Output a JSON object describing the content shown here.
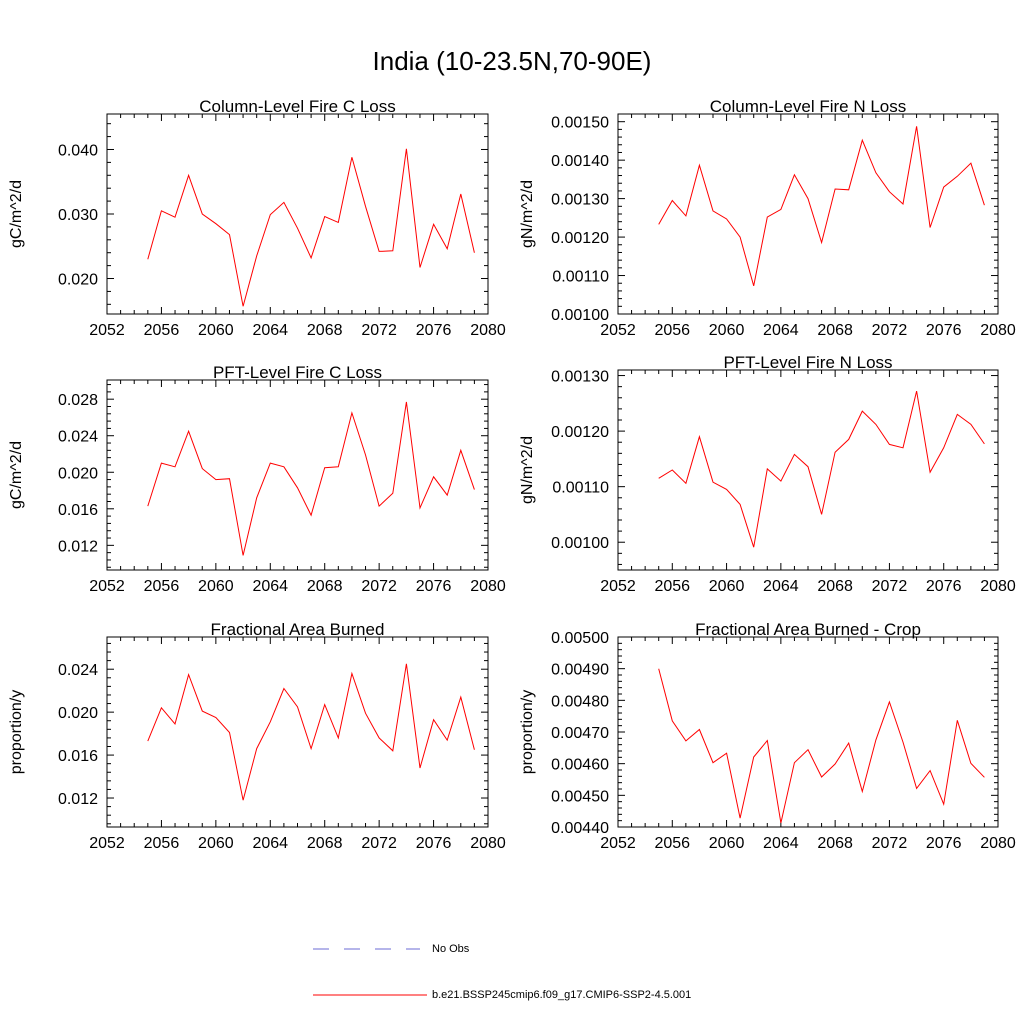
{
  "figure": {
    "title": "India (10-23.5N,70-90E)"
  },
  "legend": {
    "items": [
      {
        "label": "No Obs",
        "color": "#6b6bd6",
        "style": "dashed"
      },
      {
        "label": "b.e21.BSSP245cmip6.f09_g17.CMIP6-SSP2-4.5.001",
        "color": "#ff0000",
        "style": "solid"
      }
    ]
  },
  "colors": {
    "series": "#ff0000",
    "axis": "#000000"
  },
  "chart_data": [
    {
      "type": "line",
      "title": "Column-Level Fire C Loss",
      "ylabel": "gC/m^2/d",
      "xlim": [
        2052,
        2080
      ],
      "ylim": [
        0.0145,
        0.0455
      ],
      "xticks": [
        2052,
        2056,
        2060,
        2064,
        2068,
        2072,
        2076,
        2080
      ],
      "yticks": [
        0.02,
        0.03,
        0.04
      ],
      "ytick_labels": [
        "0.020",
        "0.030",
        "0.040"
      ],
      "x": [
        2055,
        2056,
        2057,
        2058,
        2059,
        2060,
        2061,
        2062,
        2063,
        2064,
        2065,
        2066,
        2067,
        2068,
        2069,
        2070,
        2071,
        2072,
        2073,
        2074,
        2075,
        2076,
        2077,
        2078,
        2079
      ],
      "series": [
        {
          "values": [
            0.023,
            0.0305,
            0.0295,
            0.036,
            0.03,
            0.0285,
            0.0268,
            0.0157,
            0.0235,
            0.0299,
            0.0318,
            0.0278,
            0.0232,
            0.0296,
            0.0287,
            0.0388,
            0.0312,
            0.0242,
            0.0243,
            0.0401,
            0.0217,
            0.0284,
            0.0246,
            0.0331,
            0.024
          ]
        }
      ]
    },
    {
      "type": "line",
      "title": "Column-Level Fire N Loss",
      "ylabel": "gN/m^2/d",
      "xlim": [
        2052,
        2080
      ],
      "ylim": [
        0.001,
        0.00152
      ],
      "xticks": [
        2052,
        2056,
        2060,
        2064,
        2068,
        2072,
        2076,
        2080
      ],
      "yticks": [
        0.001,
        0.0011,
        0.0012,
        0.0013,
        0.0014,
        0.0015
      ],
      "ytick_labels": [
        "0.00100",
        "0.00110",
        "0.00120",
        "0.00130",
        "0.00140",
        "0.00150"
      ],
      "x": [
        2055,
        2056,
        2057,
        2058,
        2059,
        2060,
        2061,
        2062,
        2063,
        2064,
        2065,
        2066,
        2067,
        2068,
        2069,
        2070,
        2071,
        2072,
        2073,
        2074,
        2075,
        2076,
        2077,
        2078,
        2079
      ],
      "series": [
        {
          "values": [
            0.001233,
            0.001295,
            0.001255,
            0.001387,
            0.001268,
            0.001247,
            0.0012,
            0.001073,
            0.001252,
            0.001272,
            0.001362,
            0.0013,
            0.001186,
            0.001325,
            0.001323,
            0.001452,
            0.001367,
            0.001318,
            0.001286,
            0.001488,
            0.001225,
            0.00133,
            0.001358,
            0.001392,
            0.001283
          ]
        }
      ]
    },
    {
      "type": "line",
      "title": "PFT-Level Fire C Loss",
      "ylabel": "gC/m^2/d",
      "xlim": [
        2052,
        2080
      ],
      "ylim": [
        0.0093,
        0.0301
      ],
      "xticks": [
        2052,
        2056,
        2060,
        2064,
        2068,
        2072,
        2076,
        2080
      ],
      "yticks": [
        0.012,
        0.016,
        0.02,
        0.024,
        0.028
      ],
      "ytick_labels": [
        "0.012",
        "0.016",
        "0.020",
        "0.024",
        "0.028"
      ],
      "x": [
        2055,
        2056,
        2057,
        2058,
        2059,
        2060,
        2061,
        2062,
        2063,
        2064,
        2065,
        2066,
        2067,
        2068,
        2069,
        2070,
        2071,
        2072,
        2073,
        2074,
        2075,
        2076,
        2077,
        2078,
        2079
      ],
      "series": [
        {
          "values": [
            0.0163,
            0.021,
            0.0206,
            0.0245,
            0.0204,
            0.0192,
            0.0193,
            0.0109,
            0.0172,
            0.021,
            0.0206,
            0.0183,
            0.0153,
            0.0205,
            0.0206,
            0.0265,
            0.0219,
            0.0163,
            0.0177,
            0.0277,
            0.0161,
            0.0195,
            0.0175,
            0.0224,
            0.0181
          ]
        }
      ]
    },
    {
      "type": "line",
      "title": "PFT-Level Fire N Loss",
      "ylabel": "gN/m^2/d",
      "xlim": [
        2052,
        2080
      ],
      "ylim": [
        0.00095,
        0.00131
      ],
      "xticks": [
        2052,
        2056,
        2060,
        2064,
        2068,
        2072,
        2076,
        2080
      ],
      "yticks": [
        0.001,
        0.0011,
        0.0012,
        0.0013
      ],
      "ytick_labels": [
        "0.00100",
        "0.00110",
        "0.00120",
        "0.00130"
      ],
      "x": [
        2055,
        2056,
        2057,
        2058,
        2059,
        2060,
        2061,
        2062,
        2063,
        2064,
        2065,
        2066,
        2067,
        2068,
        2069,
        2070,
        2071,
        2072,
        2073,
        2074,
        2075,
        2076,
        2077,
        2078,
        2079
      ],
      "series": [
        {
          "values": [
            0.001115,
            0.00113,
            0.001106,
            0.00119,
            0.001108,
            0.001095,
            0.001068,
            0.000991,
            0.001132,
            0.00111,
            0.001158,
            0.001136,
            0.00105,
            0.001162,
            0.001185,
            0.001236,
            0.001212,
            0.001176,
            0.00117,
            0.001272,
            0.001126,
            0.00117,
            0.00123,
            0.001212,
            0.001177
          ]
        }
      ]
    },
    {
      "type": "line",
      "title": "Fractional Area Burned",
      "ylabel": "proportion/y",
      "xlim": [
        2052,
        2080
      ],
      "ylim": [
        0.0093,
        0.027
      ],
      "xticks": [
        2052,
        2056,
        2060,
        2064,
        2068,
        2072,
        2076,
        2080
      ],
      "yticks": [
        0.012,
        0.016,
        0.02,
        0.024
      ],
      "ytick_labels": [
        "0.012",
        "0.016",
        "0.020",
        "0.024"
      ],
      "x": [
        2055,
        2056,
        2057,
        2058,
        2059,
        2060,
        2061,
        2062,
        2063,
        2064,
        2065,
        2066,
        2067,
        2068,
        2069,
        2070,
        2071,
        2072,
        2073,
        2074,
        2075,
        2076,
        2077,
        2078,
        2079
      ],
      "series": [
        {
          "values": [
            0.0173,
            0.0204,
            0.0189,
            0.0235,
            0.0201,
            0.0195,
            0.0181,
            0.0118,
            0.0166,
            0.0191,
            0.0222,
            0.0205,
            0.0166,
            0.0207,
            0.0176,
            0.0236,
            0.0199,
            0.0176,
            0.0164,
            0.0245,
            0.0148,
            0.0193,
            0.0174,
            0.0214,
            0.0165
          ]
        }
      ]
    },
    {
      "type": "line",
      "title": "Fractional Area Burned - Crop",
      "ylabel": "proportion/y",
      "xlim": [
        2052,
        2080
      ],
      "ylim": [
        0.0044,
        0.005
      ],
      "xticks": [
        2052,
        2056,
        2060,
        2064,
        2068,
        2072,
        2076,
        2080
      ],
      "yticks": [
        0.0044,
        0.0045,
        0.0046,
        0.0047,
        0.0048,
        0.0049,
        0.005
      ],
      "ytick_labels": [
        "0.00440",
        "0.00450",
        "0.00460",
        "0.00470",
        "0.00480",
        "0.00490",
        "0.00500"
      ],
      "x": [
        2055,
        2056,
        2057,
        2058,
        2059,
        2060,
        2061,
        2062,
        2063,
        2064,
        2065,
        2066,
        2067,
        2068,
        2069,
        2070,
        2071,
        2072,
        2073,
        2074,
        2075,
        2076,
        2077,
        2078,
        2079
      ],
      "series": [
        {
          "values": [
            0.0049,
            0.004735,
            0.004672,
            0.004708,
            0.004603,
            0.004633,
            0.004428,
            0.004621,
            0.004673,
            0.004413,
            0.004603,
            0.004644,
            0.004558,
            0.004599,
            0.004665,
            0.004512,
            0.004675,
            0.004795,
            0.004668,
            0.004522,
            0.004578,
            0.004472,
            0.004737,
            0.004601,
            0.004557
          ]
        }
      ]
    }
  ]
}
